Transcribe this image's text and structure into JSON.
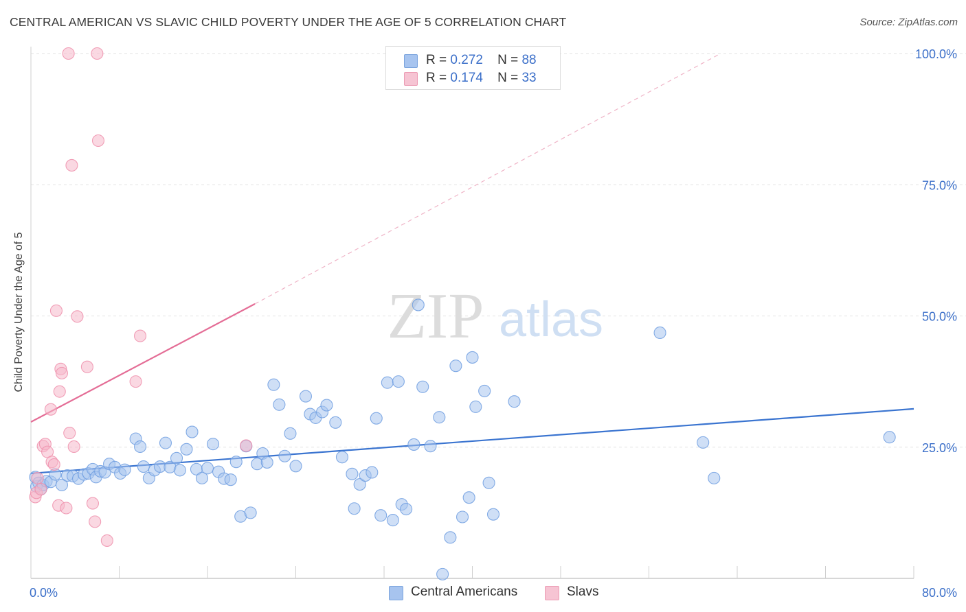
{
  "header": {
    "title": "CENTRAL AMERICAN VS SLAVIC CHILD POVERTY UNDER THE AGE OF 5 CORRELATION CHART",
    "source": "Source: ZipAtlas.com"
  },
  "watermark": {
    "zip": "ZIP",
    "atlas": "atlas"
  },
  "legend": {
    "rows": [
      {
        "r_label": "R =",
        "r_value": "0.272",
        "n_label": "N =",
        "n_value": "88",
        "color": "#a7c4ef"
      },
      {
        "r_label": "R =",
        "r_value": "0.174",
        "n_label": "N =",
        "n_value": "33",
        "color": "#f6b8cb"
      }
    ]
  },
  "bottom_legend": {
    "items": [
      {
        "label": "Central Americans",
        "color": "#a7c4ef"
      },
      {
        "label": "Slavs",
        "color": "#f6b8cb"
      }
    ]
  },
  "chart_data": {
    "type": "scatter",
    "title": "CENTRAL AMERICAN VS SLAVIC CHILD POVERTY UNDER THE AGE OF 5 CORRELATION CHART",
    "xlabel": "",
    "ylabel": "Child Poverty Under the Age of 5",
    "xlim": [
      0,
      80
    ],
    "ylim": [
      0,
      100
    ],
    "x_tick_labels": [
      "0.0%",
      "80.0%"
    ],
    "y_tick_labels": [
      "25.0%",
      "50.0%",
      "75.0%",
      "100.0%"
    ],
    "y_ticks": [
      25,
      50,
      75,
      100
    ],
    "grid": true,
    "legend_position": "top-center",
    "series": [
      {
        "name": "Central Americans",
        "color": "#6f9ee0",
        "fill": "#a7c4ef",
        "trend": {
          "x": [
            0,
            80
          ],
          "y": [
            20.0,
            32.3
          ]
        },
        "points": [
          [
            0.4,
            19.3
          ],
          [
            0.5,
            17.5
          ],
          [
            0.7,
            18.2
          ],
          [
            0.9,
            17.0
          ],
          [
            1.1,
            17.8
          ],
          [
            1.4,
            18.5
          ],
          [
            1.8,
            18.4
          ],
          [
            2.2,
            19.8
          ],
          [
            2.8,
            17.8
          ],
          [
            3.3,
            19.6
          ],
          [
            3.8,
            19.5
          ],
          [
            4.3,
            19.0
          ],
          [
            4.8,
            19.8
          ],
          [
            5.2,
            20.0
          ],
          [
            5.6,
            20.8
          ],
          [
            5.9,
            19.3
          ],
          [
            6.3,
            20.4
          ],
          [
            6.7,
            20.2
          ],
          [
            7.1,
            21.8
          ],
          [
            7.6,
            21.2
          ],
          [
            8.1,
            20.0
          ],
          [
            8.5,
            20.7
          ],
          [
            9.5,
            26.6
          ],
          [
            9.9,
            25.1
          ],
          [
            10.2,
            21.3
          ],
          [
            10.7,
            19.1
          ],
          [
            11.2,
            20.6
          ],
          [
            11.7,
            21.3
          ],
          [
            12.2,
            25.8
          ],
          [
            12.6,
            21.2
          ],
          [
            13.2,
            22.9
          ],
          [
            13.5,
            20.6
          ],
          [
            14.1,
            24.6
          ],
          [
            14.6,
            27.9
          ],
          [
            15.0,
            20.8
          ],
          [
            15.5,
            19.1
          ],
          [
            16.0,
            21.0
          ],
          [
            16.5,
            25.6
          ],
          [
            17.0,
            20.3
          ],
          [
            17.5,
            19.0
          ],
          [
            18.1,
            18.8
          ],
          [
            18.6,
            22.2
          ],
          [
            19.0,
            11.8
          ],
          [
            19.5,
            25.2
          ],
          [
            19.9,
            12.5
          ],
          [
            20.5,
            21.8
          ],
          [
            21.0,
            23.8
          ],
          [
            21.4,
            22.1
          ],
          [
            22.0,
            36.9
          ],
          [
            22.5,
            33.1
          ],
          [
            23.0,
            23.3
          ],
          [
            23.5,
            27.6
          ],
          [
            24.0,
            21.4
          ],
          [
            24.9,
            34.7
          ],
          [
            25.3,
            31.3
          ],
          [
            25.8,
            30.6
          ],
          [
            26.4,
            31.7
          ],
          [
            26.8,
            33.0
          ],
          [
            27.6,
            29.7
          ],
          [
            28.2,
            23.1
          ],
          [
            29.1,
            19.9
          ],
          [
            29.3,
            13.3
          ],
          [
            29.8,
            17.9
          ],
          [
            30.3,
            19.6
          ],
          [
            30.9,
            20.2
          ],
          [
            31.3,
            30.5
          ],
          [
            31.7,
            12.0
          ],
          [
            32.3,
            37.3
          ],
          [
            32.8,
            11.1
          ],
          [
            33.3,
            37.5
          ],
          [
            33.6,
            14.1
          ],
          [
            34.0,
            13.2
          ],
          [
            34.7,
            25.5
          ],
          [
            35.1,
            52.1
          ],
          [
            35.5,
            36.5
          ],
          [
            36.2,
            25.2
          ],
          [
            37.0,
            30.7
          ],
          [
            37.3,
            0.8
          ],
          [
            38.0,
            7.8
          ],
          [
            38.5,
            40.5
          ],
          [
            39.1,
            11.7
          ],
          [
            39.7,
            15.4
          ],
          [
            40.0,
            42.1
          ],
          [
            40.3,
            32.7
          ],
          [
            41.1,
            35.7
          ],
          [
            41.5,
            18.2
          ],
          [
            41.9,
            12.2
          ],
          [
            43.8,
            33.7
          ],
          [
            57.0,
            46.8
          ],
          [
            60.9,
            25.9
          ],
          [
            61.9,
            19.1
          ],
          [
            77.8,
            26.9
          ]
        ]
      },
      {
        "name": "Slavs",
        "color": "#ef8fab",
        "fill": "#f6b8cb",
        "trend": {
          "x": [
            0,
            20.3
          ],
          "y": [
            29.8,
            52.3
          ]
        },
        "trend_ext": {
          "x": [
            20.3,
            62.5
          ],
          "y": [
            52.3,
            100.0
          ]
        },
        "points": [
          [
            0.4,
            15.5
          ],
          [
            0.5,
            16.3
          ],
          [
            0.6,
            19.1
          ],
          [
            0.9,
            17.0
          ],
          [
            1.1,
            25.2
          ],
          [
            1.3,
            25.6
          ],
          [
            1.5,
            24.1
          ],
          [
            1.8,
            32.2
          ],
          [
            1.9,
            22.2
          ],
          [
            2.1,
            21.7
          ],
          [
            2.3,
            51.0
          ],
          [
            2.5,
            13.9
          ],
          [
            2.6,
            35.6
          ],
          [
            2.7,
            39.9
          ],
          [
            2.8,
            39.1
          ],
          [
            3.2,
            13.4
          ],
          [
            3.4,
            100.0
          ],
          [
            3.5,
            27.7
          ],
          [
            3.7,
            78.7
          ],
          [
            3.9,
            25.1
          ],
          [
            4.2,
            49.9
          ],
          [
            5.1,
            40.3
          ],
          [
            5.6,
            14.3
          ],
          [
            5.8,
            10.8
          ],
          [
            6.0,
            100.0
          ],
          [
            6.1,
            83.4
          ],
          [
            6.9,
            7.2
          ],
          [
            9.5,
            37.5
          ],
          [
            9.9,
            46.2
          ],
          [
            19.5,
            25.3
          ]
        ]
      }
    ]
  }
}
